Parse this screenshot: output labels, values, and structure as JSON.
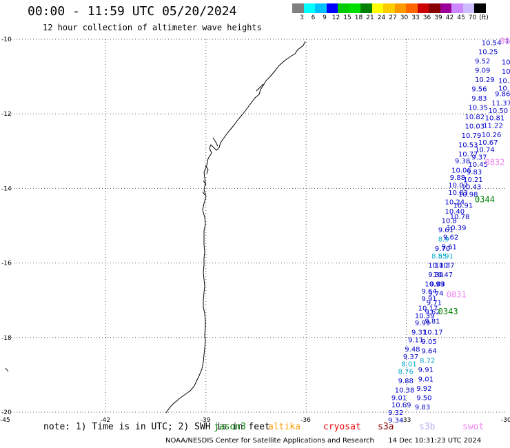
{
  "header": {
    "title": "00:00 - 11:59 UTC 05/20/2024",
    "subtitle": "12 hour collection of altimeter wave heights"
  },
  "colorbar": {
    "colors": [
      "#808080",
      "#00ffff",
      "#00bfff",
      "#0000ff",
      "#00cc00",
      "#00e000",
      "#008000",
      "#ffff00",
      "#ffcc00",
      "#ff9900",
      "#ff6600",
      "#cc0000",
      "#880000",
      "#990099",
      "#cc88ff",
      "#ccbbff",
      "#000000"
    ],
    "labels": [
      "3",
      "6",
      "9",
      "12",
      "15",
      "18",
      "21",
      "24",
      "27",
      "30",
      "33",
      "36",
      "39",
      "42",
      "45",
      "70",
      "(ft)"
    ]
  },
  "axes": {
    "lat_ticks": [
      "-10",
      "-12",
      "-14",
      "-16",
      "-18",
      "-20"
    ],
    "lon_ticks": [
      "-45",
      "-42",
      "-39",
      "-36",
      "-33",
      "-30"
    ]
  },
  "measurements": [
    {
      "lat": -10.08,
      "lon": -30.5,
      "text": "10.54",
      "color": "#0000cc"
    },
    {
      "lat": -10.32,
      "lon": -30.6,
      "text": "10.25",
      "color": "#0000cc"
    },
    {
      "lat": -10.57,
      "lon": -30.7,
      "text": "9.52",
      "color": "#0000cc"
    },
    {
      "lat": -10.82,
      "lon": -30.7,
      "text": "9.09",
      "color": "#0000cc"
    },
    {
      "lat": -11.07,
      "lon": -30.7,
      "text": "10.29",
      "color": "#0000cc"
    },
    {
      "lat": -11.32,
      "lon": -30.8,
      "text": "9.56",
      "color": "#0000cc"
    },
    {
      "lat": -11.57,
      "lon": -30.8,
      "text": "9.83",
      "color": "#0000cc"
    },
    {
      "lat": -11.82,
      "lon": -30.9,
      "text": "10.35",
      "color": "#0000cc"
    },
    {
      "lat": -12.07,
      "lon": -31.0,
      "text": "10.82",
      "color": "#0000cc"
    },
    {
      "lat": -12.32,
      "lon": -31.0,
      "text": "10.03",
      "color": "#0000cc"
    },
    {
      "lat": -12.57,
      "lon": -31.1,
      "text": "10.79",
      "color": "#0000cc"
    },
    {
      "lat": -12.82,
      "lon": -31.2,
      "text": "10.53",
      "color": "#0000cc"
    },
    {
      "lat": -13.07,
      "lon": -31.2,
      "text": "10.77",
      "color": "#0000cc"
    },
    {
      "lat": -13.25,
      "lon": -31.3,
      "text": "9.38",
      "color": "#0000cc"
    },
    {
      "lat": -13.5,
      "lon": -31.4,
      "text": "10.06",
      "color": "#0000cc"
    },
    {
      "lat": -13.7,
      "lon": -31.45,
      "text": "9.88",
      "color": "#0000cc"
    },
    {
      "lat": -13.9,
      "lon": -31.5,
      "text": "10.07",
      "color": "#0000cc"
    },
    {
      "lat": -14.1,
      "lon": -31.5,
      "text": "10.83",
      "color": "#0000cc"
    },
    {
      "lat": -14.35,
      "lon": -31.6,
      "text": "10.24",
      "color": "#0000cc"
    },
    {
      "lat": -14.6,
      "lon": -31.6,
      "text": "10.40",
      "color": "#0000cc"
    },
    {
      "lat": -14.85,
      "lon": -31.7,
      "text": "10.8",
      "color": "#0000cc"
    },
    {
      "lat": -15.1,
      "lon": -31.8,
      "text": "9.61",
      "color": "#0000cc"
    },
    {
      "lat": -15.35,
      "lon": -31.8,
      "text": "8.9",
      "color": "#00aacc"
    },
    {
      "lat": -15.6,
      "lon": -31.9,
      "text": "9.70",
      "color": "#0000cc"
    },
    {
      "lat": -15.8,
      "lon": -32.0,
      "text": "8.55",
      "color": "#00aacc"
    },
    {
      "lat": -16.05,
      "lon": -32.1,
      "text": "10.10",
      "color": "#0000cc"
    },
    {
      "lat": -16.3,
      "lon": -32.1,
      "text": "9.30",
      "color": "#0000cc"
    },
    {
      "lat": -16.55,
      "lon": -32.2,
      "text": "10.99",
      "color": "#0000cc"
    },
    {
      "lat": -16.75,
      "lon": -32.3,
      "text": "9.64",
      "color": "#0000cc"
    },
    {
      "lat": -16.95,
      "lon": -32.3,
      "text": "9.91",
      "color": "#0000cc"
    },
    {
      "lat": -17.2,
      "lon": -32.4,
      "text": "10.17",
      "color": "#0000cc"
    },
    {
      "lat": -17.4,
      "lon": -32.5,
      "text": "10.39",
      "color": "#0000cc"
    },
    {
      "lat": -17.6,
      "lon": -32.5,
      "text": "9.99",
      "color": "#0000cc"
    },
    {
      "lat": -17.85,
      "lon": -32.6,
      "text": "9.31",
      "color": "#0000cc"
    },
    {
      "lat": -18.05,
      "lon": -32.7,
      "text": "9.11",
      "color": "#0000cc"
    },
    {
      "lat": -18.3,
      "lon": -32.8,
      "text": "9.48",
      "color": "#0000cc"
    },
    {
      "lat": -18.5,
      "lon": -32.85,
      "text": "9.37",
      "color": "#0000cc"
    },
    {
      "lat": -18.7,
      "lon": -32.9,
      "text": "8.01",
      "color": "#00aacc"
    },
    {
      "lat": -18.9,
      "lon": -33.0,
      "text": "8.76",
      "color": "#00aacc"
    },
    {
      "lat": -19.15,
      "lon": -33.0,
      "text": "9.88",
      "color": "#0000cc"
    },
    {
      "lat": -19.4,
      "lon": -33.1,
      "text": "10.38",
      "color": "#0000cc"
    },
    {
      "lat": -19.6,
      "lon": -33.2,
      "text": "9.01",
      "color": "#0000cc"
    },
    {
      "lat": -19.8,
      "lon": -33.2,
      "text": "10.69",
      "color": "#0000cc"
    },
    {
      "lat": -20.0,
      "lon": -33.3,
      "text": "9.32",
      "color": "#0000cc"
    },
    {
      "lat": -20.2,
      "lon": -33.3,
      "text": "9.34",
      "color": "#0000cc"
    },
    {
      "lat": -10.05,
      "lon": -29.8,
      "text": "10.",
      "color": "#0000cc"
    },
    {
      "lat": -10.6,
      "lon": -29.9,
      "text": "10",
      "color": "#0000cc"
    },
    {
      "lat": -10.85,
      "lon": -29.9,
      "text": "10.",
      "color": "#0000cc"
    },
    {
      "lat": -11.1,
      "lon": -30.0,
      "text": "10.3",
      "color": "#0000cc"
    },
    {
      "lat": -11.3,
      "lon": -30.0,
      "text": "10.1",
      "color": "#0000cc"
    },
    {
      "lat": -11.45,
      "lon": -30.1,
      "text": "9.86",
      "color": "#0000cc"
    },
    {
      "lat": -11.7,
      "lon": -30.2,
      "text": "11.37",
      "color": "#0000cc"
    },
    {
      "lat": -11.9,
      "lon": -30.3,
      "text": "10.50",
      "color": "#0000cc"
    },
    {
      "lat": -12.1,
      "lon": -30.4,
      "text": "10.81",
      "color": "#0000cc"
    },
    {
      "lat": -12.3,
      "lon": -30.45,
      "text": "11.22",
      "color": "#0000cc"
    },
    {
      "lat": -12.55,
      "lon": -30.5,
      "text": "10.26",
      "color": "#0000cc"
    },
    {
      "lat": -12.75,
      "lon": -30.6,
      "text": "10.67",
      "color": "#0000cc"
    },
    {
      "lat": -12.95,
      "lon": -30.7,
      "text": "10.74",
      "color": "#0000cc"
    },
    {
      "lat": -13.15,
      "lon": -30.8,
      "text": "9.37",
      "color": "#0000cc"
    },
    {
      "lat": -13.35,
      "lon": -30.9,
      "text": "10.45",
      "color": "#0000cc"
    },
    {
      "lat": -13.55,
      "lon": -30.95,
      "text": "9.83",
      "color": "#0000cc"
    },
    {
      "lat": -13.75,
      "lon": -31.05,
      "text": "10.21",
      "color": "#0000cc"
    },
    {
      "lat": -13.95,
      "lon": -31.1,
      "text": "10.43",
      "color": "#0000cc"
    },
    {
      "lat": -14.15,
      "lon": -31.2,
      "text": "10.98",
      "color": "#0000cc"
    },
    {
      "lat": -14.45,
      "lon": -31.35,
      "text": "10.91",
      "color": "#0000cc"
    },
    {
      "lat": -14.75,
      "lon": -31.45,
      "text": "10.78",
      "color": "#0000cc"
    },
    {
      "lat": -15.05,
      "lon": -31.55,
      "text": "10.39",
      "color": "#0000cc"
    },
    {
      "lat": -15.3,
      "lon": -31.65,
      "text": "9.62",
      "color": "#0000cc"
    },
    {
      "lat": -15.55,
      "lon": -31.7,
      "text": "9.61",
      "color": "#0000cc"
    },
    {
      "lat": -15.8,
      "lon": -31.8,
      "text": "8.91",
      "color": "#00aacc"
    },
    {
      "lat": -16.05,
      "lon": -31.9,
      "text": "10.37",
      "color": "#0000cc"
    },
    {
      "lat": -16.3,
      "lon": -31.95,
      "text": "10.47",
      "color": "#0000cc"
    },
    {
      "lat": -16.55,
      "lon": -32.05,
      "text": "9.83",
      "color": "#0000cc"
    },
    {
      "lat": -16.8,
      "lon": -32.1,
      "text": "9.74",
      "color": "#0000cc"
    },
    {
      "lat": -17.05,
      "lon": -32.15,
      "text": "9.71",
      "color": "#0000cc"
    },
    {
      "lat": -17.3,
      "lon": -32.2,
      "text": "9.62",
      "color": "#0000cc"
    },
    {
      "lat": -17.55,
      "lon": -32.2,
      "text": "9.81",
      "color": "#0000cc"
    },
    {
      "lat": -17.85,
      "lon": -32.25,
      "text": "10.17",
      "color": "#0000cc"
    },
    {
      "lat": -18.1,
      "lon": -32.3,
      "text": "9.05",
      "color": "#0000cc"
    },
    {
      "lat": -18.35,
      "lon": -32.3,
      "text": "9.64",
      "color": "#0000cc"
    },
    {
      "lat": -18.6,
      "lon": -32.35,
      "text": "8.72",
      "color": "#00aacc"
    },
    {
      "lat": -18.85,
      "lon": -32.4,
      "text": "9.91",
      "color": "#0000cc"
    },
    {
      "lat": -19.1,
      "lon": -32.4,
      "text": "9.01",
      "color": "#0000cc"
    },
    {
      "lat": -19.35,
      "lon": -32.45,
      "text": "9.92",
      "color": "#0000cc"
    },
    {
      "lat": -19.6,
      "lon": -32.45,
      "text": "9.50",
      "color": "#0000cc"
    },
    {
      "lat": -19.85,
      "lon": -32.5,
      "text": "9.83",
      "color": "#0000cc"
    }
  ],
  "pass_labels": [
    {
      "lat": -10.05,
      "lon": -30.2,
      "text": "08",
      "color": "#ee82ee"
    },
    {
      "lat": -13.3,
      "lon": -30.65,
      "text": "0832",
      "color": "#ee82ee"
    },
    {
      "lat": -14.3,
      "lon": -30.95,
      "text": "0344",
      "color": "#008000"
    },
    {
      "lat": -16.85,
      "lon": -31.8,
      "text": "0831",
      "color": "#ee82ee"
    },
    {
      "lat": -17.3,
      "lon": -32.05,
      "text": "0343",
      "color": "#008000"
    }
  ],
  "note": {
    "prefix": "note: 1) Time is in UTC; 2) SWH is in feet",
    "satellites": [
      {
        "name": "jason3",
        "color": "#008000"
      },
      {
        "name": "altika",
        "color": "#ff9900"
      },
      {
        "name": "cryosat",
        "color": "#ee0000"
      },
      {
        "name": "s3a",
        "color": "#8b0000"
      },
      {
        "name": "s3b",
        "color": "#bbaaee"
      },
      {
        "name": "swot",
        "color": "#ee82ee"
      }
    ]
  },
  "footer": {
    "credit": "NOAA/NESDIS Center for Satellite Applications and Research",
    "timestamp": "14 Dec 10:31:23 UTC 2024"
  }
}
